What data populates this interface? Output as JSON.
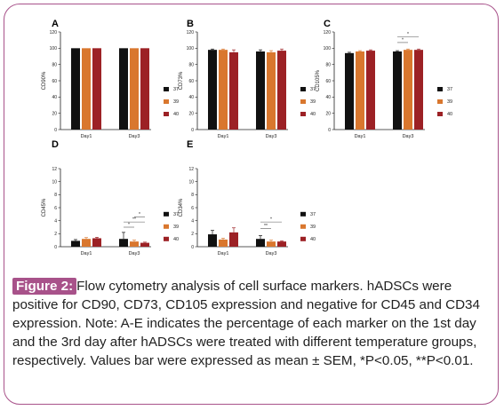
{
  "colors": {
    "s37": "#111111",
    "s39": "#d9772e",
    "s40": "#9c2125",
    "frame": "#a8528a"
  },
  "caption": {
    "label": "Figure 2:",
    "text": "Flow cytometry analysis of cell surface markers. hADSCs were positive for CD90, CD73, CD105 expression and negative for CD45 and CD34 expression. Note: A-E indicates the percentage of each marker on the 1st day and the 3rd day after hADSCs were treated with different temperature groups, respectively. Values bar were expressed as mean ± SEM, *P<0.05, **P<0.01."
  },
  "chart_data": [
    {
      "type": "bar",
      "panel": "A",
      "ylabel": "CD90%",
      "ylim": [
        0,
        120
      ],
      "yticks": [
        0,
        20,
        40,
        60,
        80,
        100,
        120
      ],
      "categories": [
        "Day1",
        "Day3"
      ],
      "series": [
        {
          "name": "37",
          "values": [
            100,
            100
          ],
          "err": [
            0,
            0
          ]
        },
        {
          "name": "39",
          "values": [
            100,
            100
          ],
          "err": [
            0,
            0
          ]
        },
        {
          "name": "40",
          "values": [
            100,
            100
          ],
          "err": [
            0,
            0
          ]
        }
      ],
      "legend": "right",
      "significance": []
    },
    {
      "type": "bar",
      "panel": "B",
      "ylabel": "CD73%",
      "ylim": [
        0,
        120
      ],
      "yticks": [
        0,
        20,
        40,
        60,
        80,
        100,
        120
      ],
      "categories": [
        "Day1",
        "Day3"
      ],
      "series": [
        {
          "name": "37",
          "values": [
            98,
            96
          ],
          "err": [
            1,
            2
          ]
        },
        {
          "name": "39",
          "values": [
            98,
            95
          ],
          "err": [
            1,
            2
          ]
        },
        {
          "name": "40",
          "values": [
            95,
            97
          ],
          "err": [
            3,
            2
          ]
        }
      ],
      "legend": "right",
      "significance": []
    },
    {
      "type": "bar",
      "panel": "C",
      "ylabel": "CD105%",
      "ylim": [
        0,
        120
      ],
      "yticks": [
        0,
        20,
        40,
        60,
        80,
        100,
        120
      ],
      "categories": [
        "Day1",
        "Day3"
      ],
      "series": [
        {
          "name": "37",
          "values": [
            94,
            96
          ],
          "err": [
            1,
            1
          ]
        },
        {
          "name": "39",
          "values": [
            96,
            98
          ],
          "err": [
            1,
            1
          ]
        },
        {
          "name": "40",
          "values": [
            97,
            98
          ],
          "err": [
            1,
            1
          ]
        }
      ],
      "legend": "right",
      "significance": [
        {
          "cat": 1,
          "from": 0,
          "to": 1,
          "y": 107,
          "label": "*"
        },
        {
          "cat": 1,
          "from": 0,
          "to": 2,
          "y": 114,
          "label": "*"
        }
      ]
    },
    {
      "type": "bar",
      "panel": "D",
      "ylabel": "CD45%",
      "ylim": [
        0,
        12
      ],
      "yticks": [
        0,
        2,
        4,
        6,
        8,
        10,
        12
      ],
      "categories": [
        "Day1",
        "Day3"
      ],
      "series": [
        {
          "name": "37",
          "values": [
            0.9,
            1.2
          ],
          "err": [
            0.2,
            1.0
          ]
        },
        {
          "name": "39",
          "values": [
            1.2,
            0.8
          ],
          "err": [
            0.2,
            0.2
          ]
        },
        {
          "name": "40",
          "values": [
            1.3,
            0.6
          ],
          "err": [
            0.15,
            0.1
          ]
        }
      ],
      "legend": "right",
      "significance": [
        {
          "cat": 1,
          "from": 0,
          "to": 1,
          "y": 3.0,
          "label": "*"
        },
        {
          "cat": 1,
          "from": 0,
          "to": 2,
          "y": 3.8,
          "label": "**"
        },
        {
          "cat": 1,
          "from": 1,
          "to": 2,
          "y": 4.6,
          "label": "*"
        }
      ]
    },
    {
      "type": "bar",
      "panel": "E",
      "ylabel": "CD34%",
      "ylim": [
        0,
        12
      ],
      "yticks": [
        0,
        2,
        4,
        6,
        8,
        10,
        12
      ],
      "categories": [
        "Day1",
        "Day3"
      ],
      "series": [
        {
          "name": "37",
          "values": [
            1.9,
            1.2
          ],
          "err": [
            0.6,
            0.5
          ]
        },
        {
          "name": "39",
          "values": [
            1.1,
            0.8
          ],
          "err": [
            0.2,
            0.2
          ]
        },
        {
          "name": "40",
          "values": [
            2.2,
            0.8
          ],
          "err": [
            0.7,
            0.1
          ]
        }
      ],
      "legend": "right",
      "significance": [
        {
          "cat": 1,
          "from": 0,
          "to": 1,
          "y": 2.8,
          "label": "**"
        },
        {
          "cat": 1,
          "from": 0,
          "to": 2,
          "y": 3.8,
          "label": "*"
        }
      ]
    }
  ]
}
